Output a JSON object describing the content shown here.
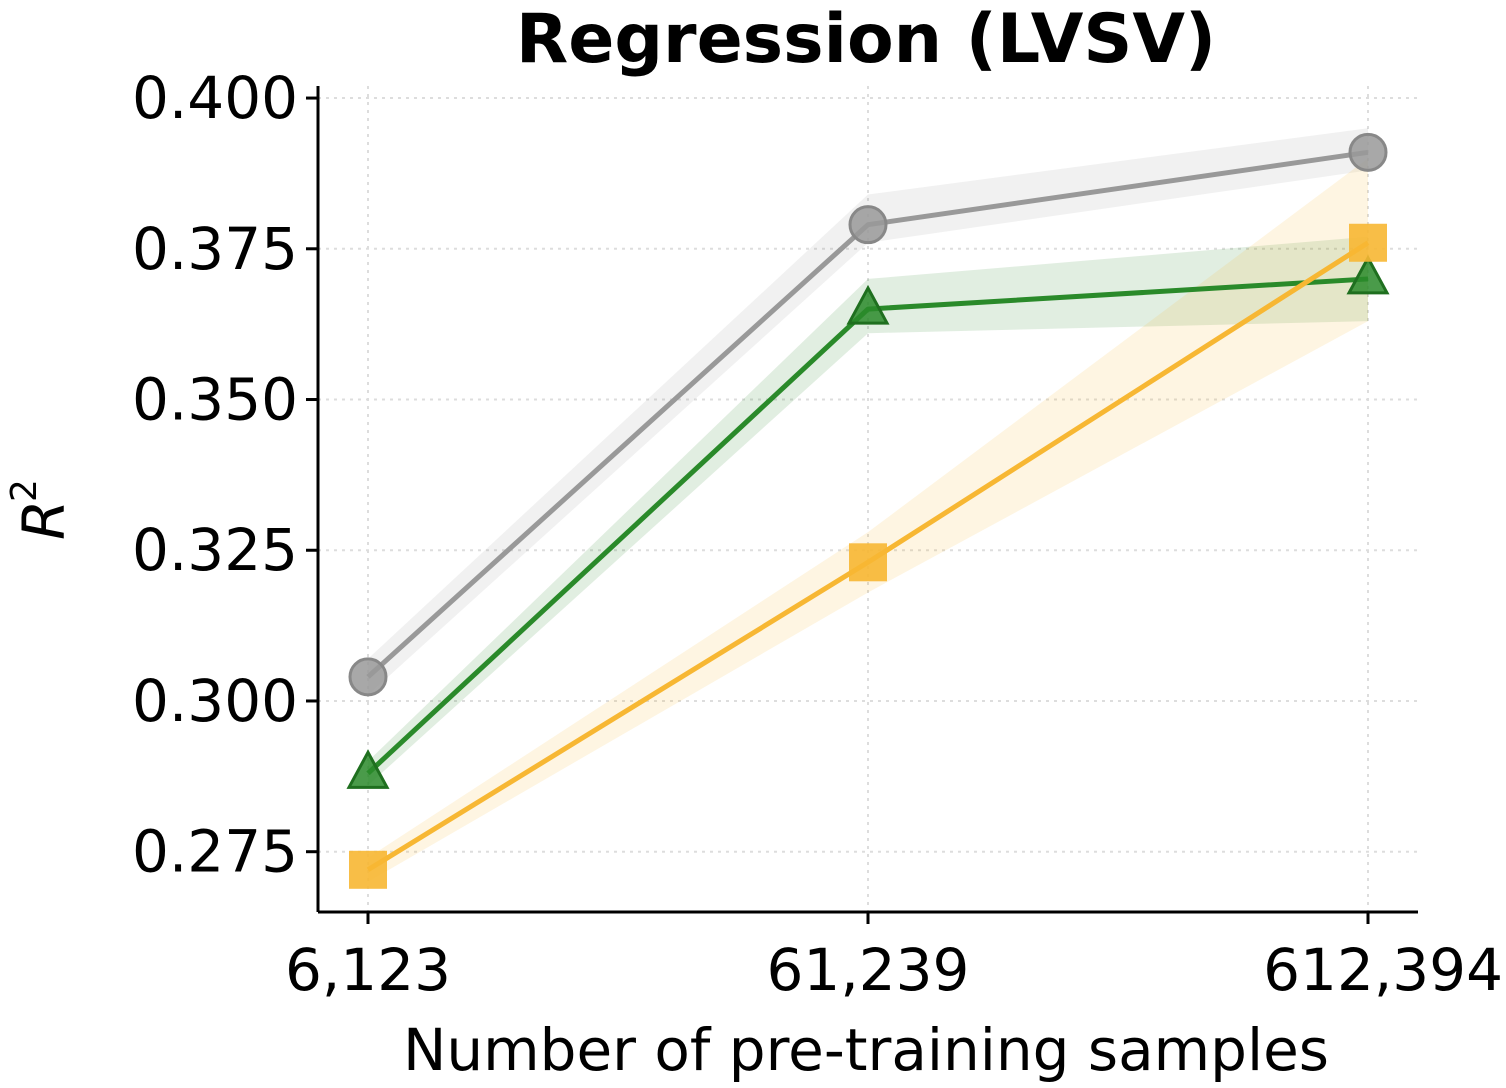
{
  "chart_data": {
    "type": "line",
    "title": "Regression (LVSV)",
    "xlabel": "Number of pre-training samples",
    "ylabel": "R",
    "ylabel_superscript": "2",
    "categories": [
      "6,123",
      "61,239",
      "612,394"
    ],
    "ylim": [
      0.265,
      0.402
    ],
    "yticks": [
      0.275,
      0.3,
      0.325,
      0.35,
      0.375,
      0.4
    ],
    "ytick_labels": [
      "0.275",
      "0.300",
      "0.325",
      "0.350",
      "0.375",
      "0.400"
    ],
    "grid": true,
    "legend": "none",
    "series": [
      {
        "name": "gray",
        "color": "#999999",
        "marker": "circle",
        "values": [
          0.304,
          0.379,
          0.391
        ],
        "lower": [
          0.301,
          0.376,
          0.388
        ],
        "upper": [
          0.307,
          0.384,
          0.395
        ]
      },
      {
        "name": "green",
        "color": "#2a8a2a",
        "marker": "triangle",
        "values": [
          0.288,
          0.365,
          0.37
        ],
        "lower": [
          0.286,
          0.361,
          0.363
        ],
        "upper": [
          0.29,
          0.37,
          0.377
        ]
      },
      {
        "name": "orange",
        "color": "#f7b733",
        "marker": "square",
        "values": [
          0.272,
          0.323,
          0.376
        ],
        "lower": [
          0.27,
          0.318,
          0.363
        ],
        "upper": [
          0.274,
          0.328,
          0.39
        ]
      }
    ]
  }
}
